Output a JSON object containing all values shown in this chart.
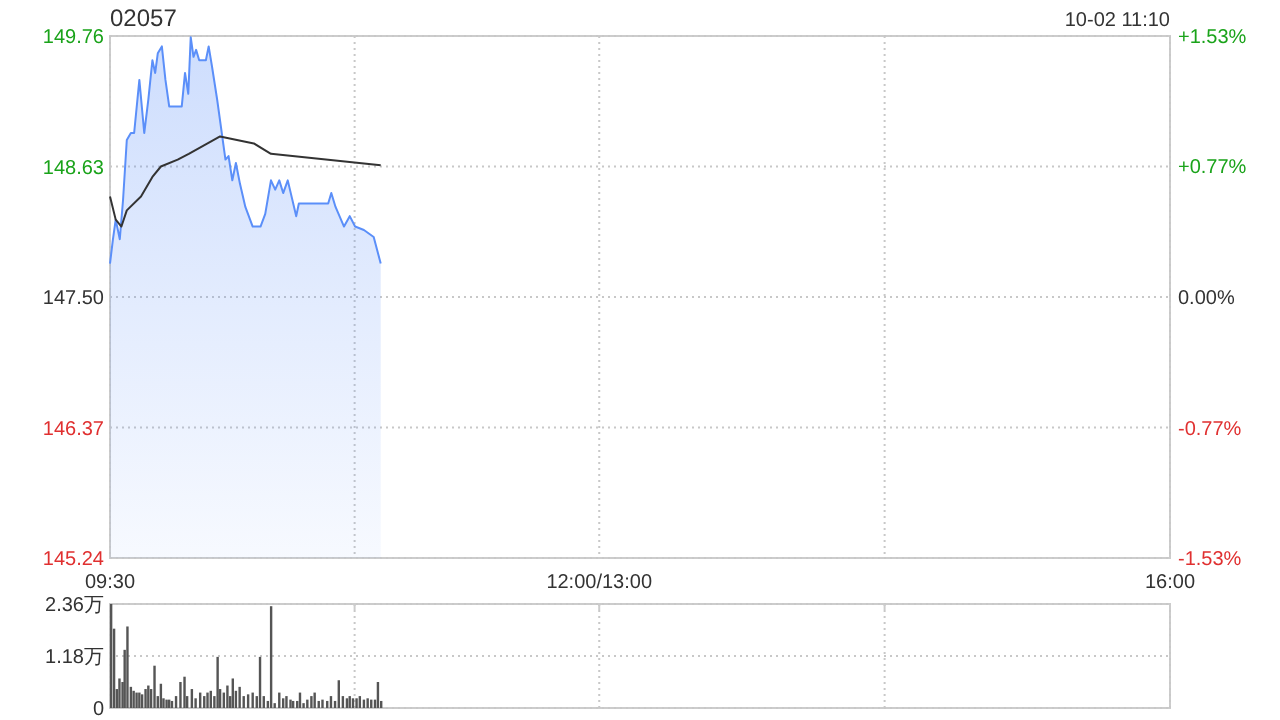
{
  "chart_data": [
    {
      "type": "area",
      "title": "02057",
      "annotations": [
        "10-02 11:10"
      ],
      "grid": true,
      "xlim": [
        9.5,
        16
      ],
      "xticks": [
        {
          "value": 9.5,
          "label": "09:30"
        },
        {
          "value": 11,
          "label": null
        },
        {
          "value": 12.5,
          "label": "12:00/13:00"
        },
        {
          "value": 14.25,
          "label": null
        },
        {
          "value": 16,
          "label": "16:00"
        }
      ],
      "ylim": [
        145.24,
        149.76
      ],
      "yticks": [
        {
          "value": 145.24,
          "label": "145.24"
        },
        {
          "value": 146.37,
          "label": "146.37"
        },
        {
          "value": 147.5,
          "label": "147.50"
        },
        {
          "value": 148.63,
          "label": "148.63"
        },
        {
          "value": 149.76,
          "label": "149.76"
        }
      ],
      "y2lim": [
        -1.53,
        1.53
      ],
      "y2ticks": [
        {
          "value": -1.53,
          "label": "-1.53%"
        },
        {
          "value": -0.77,
          "label": "-0.77%"
        },
        {
          "value": 0,
          "label": "0.00%"
        },
        {
          "value": 0.77,
          "label": "+0.77%"
        },
        {
          "value": 1.53,
          "label": "+1.53%"
        }
      ],
      "series": [
        {
          "type": "area",
          "color": "#5b8ff9",
          "x": [
            9.5,
            9.518,
            9.535,
            9.56,
            9.58,
            9.603,
            9.628,
            9.648,
            9.68,
            9.71,
            9.735,
            9.76,
            9.777,
            9.793,
            9.818,
            9.84,
            9.863,
            9.94,
            9.96,
            9.98,
            9.995,
            10.012,
            10.028,
            10.047,
            10.088,
            10.105,
            10.125,
            10.157,
            10.208,
            10.227,
            10.25,
            10.272,
            10.297,
            10.33,
            10.375,
            10.423,
            10.452,
            10.487,
            10.513,
            10.538,
            10.562,
            10.59,
            10.642,
            10.658,
            10.838,
            10.857,
            10.883,
            10.935,
            10.97,
            11.003,
            11.057,
            11.117,
            11.16
          ],
          "values": [
            147.79,
            148.0,
            148.17,
            148.0,
            148.34,
            148.86,
            148.92,
            148.92,
            149.38,
            148.92,
            149.21,
            149.55,
            149.44,
            149.61,
            149.67,
            149.38,
            149.15,
            149.15,
            149.44,
            149.26,
            149.75,
            149.58,
            149.64,
            149.55,
            149.55,
            149.67,
            149.5,
            149.21,
            148.69,
            148.72,
            148.51,
            148.66,
            148.48,
            148.28,
            148.11,
            148.11,
            148.22,
            148.51,
            148.43,
            148.51,
            148.4,
            148.51,
            148.2,
            148.31,
            148.31,
            148.4,
            148.28,
            148.11,
            148.2,
            148.11,
            148.08,
            148.02,
            147.79
          ]
        },
        {
          "type": "line",
          "color": "#333333",
          "x": [
            9.5,
            9.535,
            9.57,
            9.603,
            9.69,
            9.76,
            9.812,
            9.915,
            9.983,
            10.175,
            10.382,
            10.487,
            11.16
          ],
          "values": [
            148.37,
            148.17,
            148.11,
            148.25,
            148.37,
            148.54,
            148.63,
            148.69,
            148.74,
            148.89,
            148.83,
            148.74,
            148.64
          ]
        }
      ]
    },
    {
      "type": "bar",
      "color": "#555555",
      "grid": true,
      "tick_labels": "y",
      "xlim": [
        9.5,
        16
      ],
      "xticks": [
        {
          "value": 9.5,
          "label": null
        },
        {
          "value": 11,
          "label": null
        },
        {
          "value": 12.5,
          "label": null
        },
        {
          "value": 14.25,
          "label": null
        },
        {
          "value": 16,
          "label": null
        }
      ],
      "ylim": [
        0,
        2.36
      ],
      "yticks": [
        {
          "value": 0,
          "label": "0"
        },
        {
          "value": 1.18,
          "label": "1.18万"
        },
        {
          "value": 2.36,
          "label": "2.36万"
        }
      ],
      "x": [
        9.507,
        9.525,
        9.542,
        9.558,
        9.577,
        9.59,
        9.607,
        9.628,
        9.645,
        9.663,
        9.68,
        9.697,
        9.718,
        9.735,
        9.752,
        9.773,
        9.793,
        9.812,
        9.828,
        9.847,
        9.863,
        9.88,
        9.905,
        9.932,
        9.957,
        9.973,
        10.002,
        10.025,
        10.053,
        10.078,
        10.098,
        10.118,
        10.14,
        10.16,
        10.175,
        10.198,
        10.22,
        10.237,
        10.253,
        10.272,
        10.295,
        10.32,
        10.347,
        10.375,
        10.4,
        10.42,
        10.443,
        10.468,
        10.488,
        10.51,
        10.538,
        10.562,
        10.582,
        10.607,
        10.623,
        10.648,
        10.665,
        10.687,
        10.71,
        10.735,
        10.755,
        10.78,
        10.803,
        10.832,
        10.855,
        10.88,
        10.903,
        10.928,
        10.953,
        10.97,
        10.99,
        11.012,
        11.032,
        11.057,
        11.08,
        11.102,
        11.125,
        11.143,
        11.163
      ],
      "values": [
        2.36,
        1.8,
        0.43,
        0.67,
        0.59,
        1.32,
        1.85,
        0.48,
        0.39,
        0.35,
        0.35,
        0.31,
        0.43,
        0.51,
        0.43,
        0.96,
        0.27,
        0.55,
        0.22,
        0.19,
        0.19,
        0.16,
        0.27,
        0.59,
        0.71,
        0.27,
        0.43,
        0.22,
        0.35,
        0.27,
        0.35,
        0.39,
        0.27,
        1.16,
        0.43,
        0.35,
        0.51,
        0.27,
        0.67,
        0.39,
        0.48,
        0.27,
        0.31,
        0.35,
        0.27,
        1.16,
        0.27,
        0.16,
        2.31,
        0.11,
        0.35,
        0.22,
        0.27,
        0.19,
        0.16,
        0.16,
        0.35,
        0.11,
        0.19,
        0.27,
        0.35,
        0.16,
        0.19,
        0.16,
        0.27,
        0.16,
        0.63,
        0.27,
        0.22,
        0.27,
        0.22,
        0.22,
        0.27,
        0.19,
        0.22,
        0.19,
        0.19,
        0.59,
        0.16
      ]
    }
  ]
}
